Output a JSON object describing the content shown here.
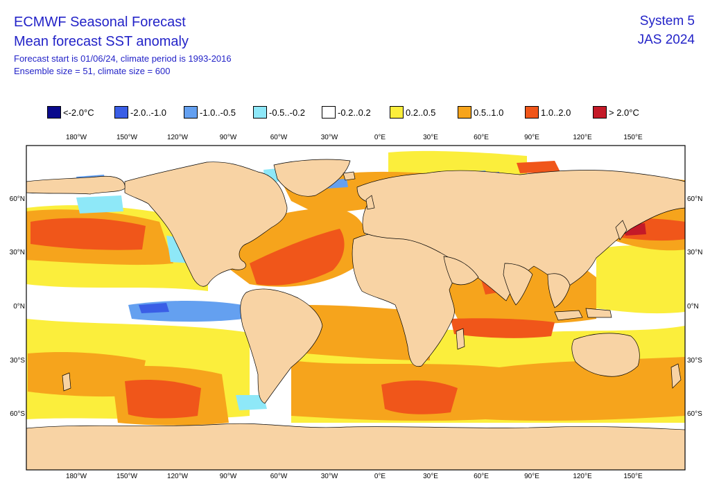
{
  "header": {
    "title_line1": "ECMWF Seasonal Forecast",
    "title_line2": "Mean forecast SST anomaly",
    "info_line1": "Forecast start is 01/06/24, climate period is 1993-2016",
    "info_line2": "Ensemble size = 51, climate size = 600",
    "system": "System 5",
    "season": "JAS 2024"
  },
  "legend": {
    "items": [
      {
        "label": "<-2.0°C",
        "color": "#0a0a8c"
      },
      {
        "label": "-2.0..-1.0",
        "color": "#3a5ee6"
      },
      {
        "label": "-1.0..-0.5",
        "color": "#64a0f0"
      },
      {
        "label": "-0.5..-0.2",
        "color": "#8ee8f8"
      },
      {
        "label": "-0.2..0.2",
        "color": "#ffffff"
      },
      {
        "label": "0.2..0.5",
        "color": "#fbee3c"
      },
      {
        "label": "0.5..1.0",
        "color": "#f6a41c"
      },
      {
        "label": "1.0..2.0",
        "color": "#f0561a"
      },
      {
        "label": "> 2.0°C",
        "color": "#c41a28"
      }
    ]
  },
  "map": {
    "lon_ticks": [
      "180°W",
      "150°W",
      "120°W",
      "90°W",
      "60°W",
      "30°W",
      "0°E",
      "30°E",
      "60°E",
      "90°E",
      "120°E",
      "150°E"
    ],
    "lat_ticks": [
      "60°N",
      "30°N",
      "0°N",
      "30°S",
      "60°S"
    ],
    "land_color": "#f8d3a4",
    "ocean_color": "#ffffff"
  }
}
